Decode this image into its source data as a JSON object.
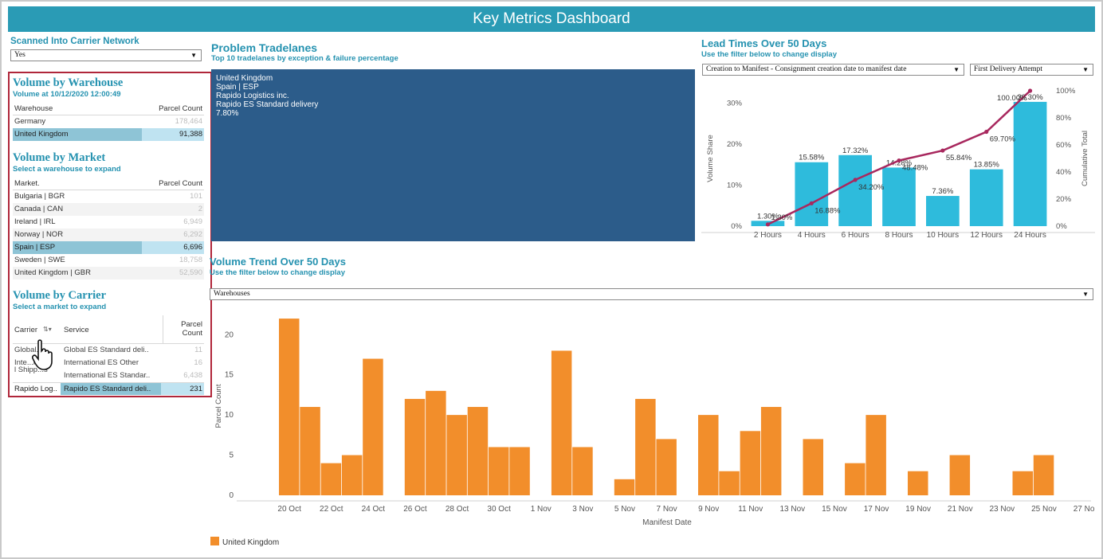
{
  "title": "Key Metrics Dashboard",
  "scanned": {
    "label": "Scanned Into Carrier Network",
    "value": "Yes"
  },
  "warehouse": {
    "title": "Volume by Warehouse",
    "subtitle": "Volume at 10/12/2020 12:00:49",
    "col1": "Warehouse",
    "col2": "Parcel Count",
    "rows": [
      {
        "name": "Germany",
        "count": "178,464"
      },
      {
        "name": "United Kingdom",
        "count": "91,388"
      }
    ]
  },
  "market": {
    "title": "Volume by Market",
    "subtitle": "Select a warehouse to expand",
    "col1": "Market.",
    "col2": "Parcel Count",
    "rows": [
      {
        "name": "Bulgaria | BGR",
        "count": "101"
      },
      {
        "name": "Canada | CAN",
        "count": "2"
      },
      {
        "name": "Ireland | IRL",
        "count": "6,949"
      },
      {
        "name": "Norway | NOR",
        "count": "6,292"
      },
      {
        "name": "Spain | ESP",
        "count": "6,696"
      },
      {
        "name": "Sweden | SWE",
        "count": "18,758"
      },
      {
        "name": "United Kingdom | GBR",
        "count": "52,590"
      }
    ]
  },
  "carrier": {
    "title": "Volume by Carrier",
    "subtitle": "Select a market to expand",
    "col1": "Carrier",
    "col2": "Service",
    "col3a": "Parcel",
    "col3b": "Count",
    "rows": [
      {
        "carrier": "Global...",
        "service": "Global ES Standard deli..",
        "count": "11"
      },
      {
        "carrier": "Inte...na",
        "service": "International ES Other",
        "count": "16"
      },
      {
        "carrier": "l Shipp...s",
        "service": "International ES Standar..",
        "count": "6,438"
      },
      {
        "carrier": "Rapido Log..",
        "service": "Rapido ES Standard deli..",
        "count": "231"
      }
    ]
  },
  "problem": {
    "title": "Problem Tradelanes",
    "subtitle": "Top 10 tradelanes by exception & failure percentage",
    "lines": [
      "United Kingdom",
      "Spain | ESP",
      "Rapido Logistics inc.",
      "Rapido ES Standard delivery",
      "7.80%"
    ]
  },
  "lead": {
    "title": "Lead Times Over 50 Days",
    "subtitle": "Use the filter below to change display",
    "filter1": "Creation to Manifest - Consignment creation date to manifest date",
    "filter2": "First Delivery Attempt"
  },
  "trend": {
    "title": "Volume Trend Over 50 Days",
    "subtitle": "Use the filter below to change display",
    "filter": "Warehouses"
  },
  "colors": {
    "teal": "#2592b0",
    "bar_blue": "#2ebbdc",
    "line": "#a8285e",
    "orange": "#f28e2b",
    "navy": "#2c5c8a",
    "highlight": "#8ec4d6"
  },
  "chart_data": [
    {
      "type": "bar",
      "categories": [
        "2 Hours",
        "4 Hours",
        "6 Hours",
        "8 Hours",
        "10 Hours",
        "12 Hours",
        "24 Hours"
      ],
      "series": [
        {
          "values": [
            1.3,
            15.58,
            17.32,
            14.28,
            7.36,
            13.85,
            30.3
          ],
          "labels": [
            "1.30%",
            "15.58%",
            "17.32%",
            "14.28%",
            "7.36%",
            "13.85%",
            "30.30%"
          ]
        },
        {
          "values": [
            1.3,
            16.88,
            34.2,
            48.48,
            55.84,
            69.7,
            100.0
          ],
          "labels": [
            "1.30%",
            "16.88%",
            "34.20%",
            "48.48%",
            "55.84%",
            "69.70%",
            "100.00%"
          ]
        }
      ],
      "ylabel": "Volume Share",
      "y2label": "Cumulative Total",
      "ylim": [
        0,
        33
      ],
      "y2lim": [
        0,
        100
      ],
      "yticks": [
        "0%",
        "10%",
        "20%",
        "30%"
      ],
      "y2ticks": [
        "0%",
        "20%",
        "40%",
        "60%",
        "80%",
        "100%"
      ]
    },
    {
      "type": "bar",
      "xlabel": "Manifest Date",
      "ylabel": "Parcel Count",
      "ylim": [
        0,
        23
      ],
      "yticks": [
        "0",
        "5",
        "10",
        "15",
        "20"
      ],
      "xticks": [
        "20 Oct",
        "22 Oct",
        "24 Oct",
        "26 Oct",
        "28 Oct",
        "30 Oct",
        "1 Nov",
        "3 Nov",
        "5 Nov",
        "7 Nov",
        "9 Nov",
        "11 Nov",
        "13 Nov",
        "15 Nov",
        "17 Nov",
        "19 Nov",
        "21 Nov",
        "23 Nov",
        "25 Nov",
        "27 Nov"
      ],
      "start_label": "20 Oct",
      "values": [
        22,
        11,
        4,
        5,
        17,
        0,
        12,
        13,
        10,
        11,
        6,
        6,
        0,
        18,
        6,
        0,
        2,
        12,
        7,
        0,
        10,
        3,
        8,
        11,
        0,
        7,
        0,
        4,
        10,
        0,
        3,
        0,
        5,
        0,
        0,
        3,
        5,
        0
      ],
      "series": [
        {
          "name": "United Kingdom"
        }
      ]
    }
  ]
}
